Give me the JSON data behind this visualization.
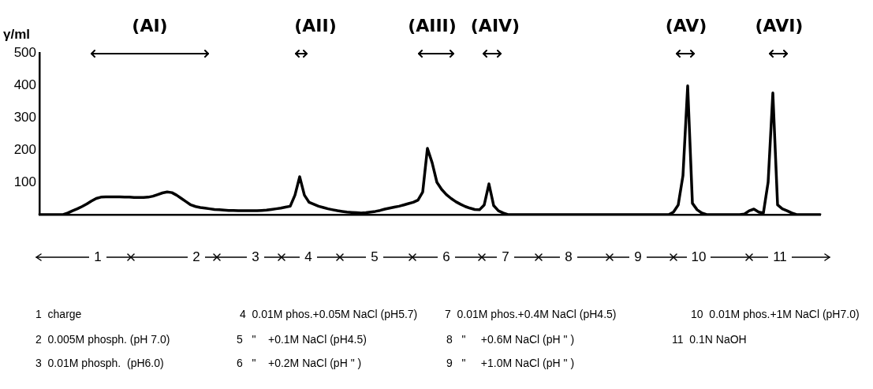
{
  "chart_data": {
    "type": "line",
    "ylabel": "γ/ml",
    "categories": [
      null,
      null,
      null,
      null,
      null,
      null,
      null,
      null,
      null,
      null,
      null,
      null,
      null,
      null,
      null,
      null,
      null,
      null,
      null,
      null,
      null,
      null,
      null,
      null,
      null,
      null,
      null,
      null,
      null,
      null,
      null,
      null,
      null,
      null,
      null,
      null,
      null,
      null,
      null,
      null,
      null,
      null,
      null,
      null,
      null,
      null,
      null,
      null,
      null,
      null,
      null,
      null,
      null,
      null,
      null,
      null,
      null,
      null,
      null,
      null,
      null,
      null,
      null,
      null,
      null,
      null,
      null,
      null,
      null,
      null,
      null,
      null,
      null,
      null,
      null,
      null,
      null,
      null,
      null,
      null,
      null,
      null,
      null,
      null,
      null,
      null,
      null,
      null,
      null,
      null,
      null,
      null,
      null,
      null,
      null,
      null,
      null,
      null,
      null,
      null,
      null,
      null,
      null,
      null,
      null,
      null,
      null,
      null,
      null,
      null,
      null,
      null,
      null,
      null,
      null,
      null,
      null,
      null,
      null,
      null,
      null,
      null,
      null,
      null,
      null,
      null,
      null,
      null,
      null,
      null,
      null,
      null,
      null,
      null,
      null,
      null,
      null,
      null,
      null,
      null,
      null,
      null,
      null,
      null,
      null,
      null,
      null,
      null,
      null,
      null,
      null,
      null,
      null,
      null,
      null,
      null,
      null,
      null,
      null,
      null,
      null,
      null,
      null,
      null,
      null,
      null
    ],
    "values": [
      0,
      0,
      0,
      0,
      0,
      0,
      5,
      12,
      18,
      25,
      33,
      42,
      50,
      54,
      55,
      55,
      55,
      55,
      54,
      54,
      53,
      53,
      53,
      54,
      57,
      62,
      67,
      70,
      68,
      60,
      50,
      40,
      30,
      25,
      22,
      20,
      18,
      16,
      15,
      14,
      13,
      13,
      12,
      12,
      12,
      12,
      12,
      13,
      14,
      16,
      18,
      20,
      23,
      26,
      60,
      117,
      60,
      38,
      32,
      26,
      22,
      18,
      15,
      12,
      10,
      8,
      7,
      6,
      5,
      6,
      8,
      10,
      13,
      17,
      20,
      23,
      26,
      30,
      34,
      38,
      45,
      70,
      205,
      160,
      100,
      78,
      62,
      50,
      40,
      32,
      25,
      20,
      16,
      15,
      30,
      95,
      28,
      12,
      5,
      0,
      0,
      0,
      0,
      0,
      0,
      0,
      0,
      0,
      0,
      0,
      0,
      0,
      0,
      0,
      0,
      0,
      0,
      0,
      0,
      0,
      0,
      0,
      0,
      0,
      0,
      0,
      0,
      0,
      0,
      0,
      0,
      0,
      0,
      0,
      8,
      30,
      120,
      398,
      35,
      15,
      5,
      0,
      0,
      0,
      0,
      0,
      0,
      0,
      0,
      2,
      12,
      17,
      8,
      5,
      100,
      376,
      30,
      18,
      12,
      5,
      0,
      0,
      0,
      0,
      0,
      0
    ],
    "color": "#000000",
    "ylim": [
      0,
      500
    ],
    "yticks": [
      100,
      200,
      300,
      400,
      500
    ],
    "grid": false,
    "legend": false,
    "annotations": [
      "(AI)",
      "(AII)",
      "(AIII)",
      "(AIV)",
      "(AV)",
      "(AVI)",
      "1",
      "2",
      "3",
      "4",
      "5",
      "6",
      "7",
      "8",
      "9",
      "10",
      "11",
      "1  charge",
      "2  0.005M phosph. (pH 7.0)",
      "3  0.01M phosph.  (pH6.0)",
      "4  0.01M phos.+0.05M NaCl (pH5.7)",
      "5   \"    +0.1M NaCl (pH4.5)",
      "6   \"    +0.2M NaCl (pH \" )",
      "7  0.01M phos.+0.4M NaCl (pH4.5)",
      "8   \"     +0.6M NaCl (pH \" )",
      "9   \"     +1.0M NaCl (pH \" )",
      "10  0.01M phos.+1M NaCl (pH7.0)",
      "11  0.1N NaOH"
    ]
  }
}
